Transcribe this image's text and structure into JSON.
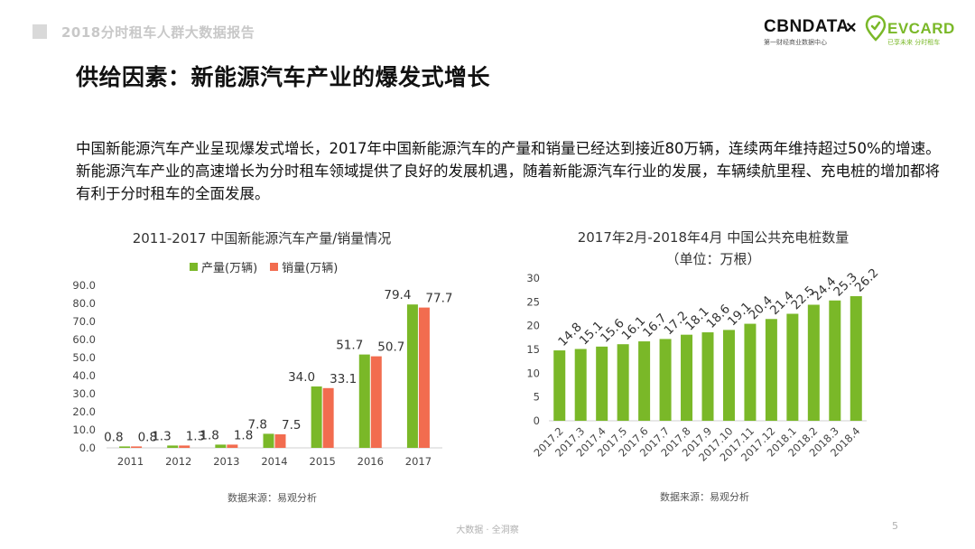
{
  "header": {
    "report_title": "2018分时租车人群大数据报告",
    "cbn_logo": "CBNDATA",
    "cbn_sub": "第一财经商业数据中心",
    "times": "×",
    "ev_logo": "EVCARD",
    "ev_sub": "已享未来 分时租车"
  },
  "slide": {
    "title": "供给因素：新能源汽车产业的爆发式增长",
    "intro": "中国新能源汽车产业呈现爆发式增长，2017年中国新能源汽车的产量和销量已经达到接近80万辆，连续两年维持超过50%的增速。新能源汽车产业的高速增长为分时租车领域提供了良好的发展机遇，随着新能源汽车行业的发展，车辆续航里程、充电桩的增加都将有利于分时租车的全面发展。"
  },
  "footer": {
    "center": "大数据 · 全洞察",
    "page": "5"
  },
  "colors": {
    "green": "#7ab828",
    "orange": "#f26c4f"
  },
  "chart_data": [
    {
      "type": "bar",
      "title": "2011-2017 中国新能源汽车产量/销量情况",
      "categories": [
        "2011",
        "2012",
        "2013",
        "2014",
        "2015",
        "2016",
        "2017"
      ],
      "series": [
        {
          "name": "产量(万辆)",
          "color": "#7ab828",
          "values": [
            0.8,
            1.3,
            1.8,
            7.8,
            34.0,
            51.7,
            79.4
          ],
          "labels": [
            "0.8",
            "1.3",
            "1.8",
            "7.8",
            "34.0",
            "51.7",
            "79.4"
          ]
        },
        {
          "name": "销量(万辆)",
          "color": "#f26c4f",
          "values": [
            0.8,
            1.3,
            1.8,
            7.5,
            33.1,
            50.7,
            77.7
          ],
          "labels": [
            "0.8",
            "1.3",
            "1.8",
            "7.5",
            "33.1",
            "50.7",
            "77.7"
          ]
        }
      ],
      "ylim": [
        0,
        90
      ],
      "yticks": [
        "0.0",
        "10.0",
        "20.0",
        "30.0",
        "40.0",
        "50.0",
        "60.0",
        "70.0",
        "80.0",
        "90.0"
      ],
      "legend": "top",
      "grid": false,
      "source": "数据来源：易观分析"
    },
    {
      "type": "bar",
      "title": "2017年2月-2018年4月 中国公共充电桩数量",
      "subtitle": "（单位：万根）",
      "categories": [
        "2017.2",
        "2017.3",
        "2017.4",
        "2017.5",
        "2017.6",
        "2017.7",
        "2017.8",
        "2017.9",
        "2017.10",
        "2017.11",
        "2017.12",
        "2018.1",
        "2018.2",
        "2018.3",
        "2018.4"
      ],
      "values": [
        14.8,
        15.1,
        15.6,
        16.1,
        16.7,
        17.2,
        18.1,
        18.6,
        19.1,
        20.4,
        21.4,
        22.5,
        24.4,
        25.3,
        26.2
      ],
      "labels": [
        "14.8",
        "15.1",
        "15.6",
        "16.1",
        "16.7",
        "17.2",
        "18.1",
        "18.6",
        "19.1",
        "20.4",
        "21.4",
        "22.5",
        "24.4",
        "25.3",
        "26.2"
      ],
      "color": "#7ab828",
      "ylim": [
        0,
        30
      ],
      "yticks": [
        "0",
        "5",
        "10",
        "15",
        "20",
        "25",
        "30"
      ],
      "grid": false,
      "source": "数据来源：易观分析"
    }
  ]
}
